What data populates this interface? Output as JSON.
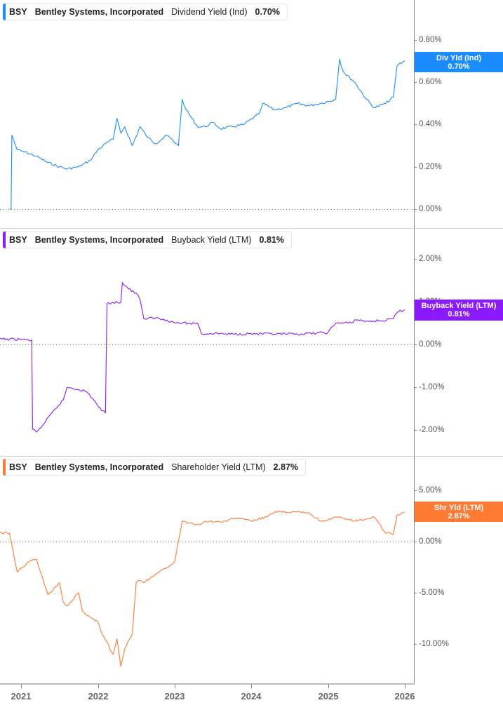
{
  "chart_data": [
    {
      "type": "line",
      "title": "BSY Bentley Systems, Incorporated Dividend Yield (Ind) 0.70%",
      "ticker": "BSY",
      "company": "Bentley Systems, Incorporated",
      "metric": "Dividend Yield (Ind)",
      "current_value": "0.70%",
      "tag_label": "Div Yld (Ind)",
      "color": "#1a8cff",
      "ylim": [
        0.0,
        0.85
      ],
      "yticks": [
        "0.80%",
        "0.60%",
        "0.40%",
        "0.20%",
        "0.00%"
      ],
      "x": [
        2020.85,
        2020.87,
        2020.88,
        2020.95,
        2021.05,
        2021.2,
        2021.35,
        2021.5,
        2021.6,
        2021.75,
        2021.9,
        2022.0,
        2022.1,
        2022.2,
        2022.25,
        2022.3,
        2022.35,
        2022.45,
        2022.55,
        2022.65,
        2022.75,
        2022.9,
        2023.05,
        2023.1,
        2023.15,
        2023.3,
        2023.4,
        2023.5,
        2023.6,
        2023.75,
        2023.9,
        2024.1,
        2024.15,
        2024.3,
        2024.45,
        2024.6,
        2024.75,
        2024.9,
        2025.1,
        2025.15,
        2025.2,
        2025.35,
        2025.5,
        2025.6,
        2025.75,
        2025.85,
        2025.9,
        2026.0
      ],
      "values": [
        0.0,
        0.0,
        0.35,
        0.28,
        0.27,
        0.25,
        0.22,
        0.2,
        0.19,
        0.2,
        0.23,
        0.28,
        0.31,
        0.33,
        0.43,
        0.36,
        0.39,
        0.3,
        0.39,
        0.34,
        0.31,
        0.35,
        0.3,
        0.52,
        0.47,
        0.39,
        0.39,
        0.41,
        0.38,
        0.39,
        0.4,
        0.45,
        0.5,
        0.47,
        0.48,
        0.5,
        0.49,
        0.5,
        0.52,
        0.71,
        0.65,
        0.6,
        0.52,
        0.48,
        0.5,
        0.53,
        0.68,
        0.7
      ]
    },
    {
      "type": "line",
      "title": "BSY Bentley Systems, Incorporated Buyback Yield (LTM) 0.81%",
      "ticker": "BSY",
      "company": "Bentley Systems, Incorporated",
      "metric": "Buyback Yield (LTM)",
      "current_value": "0.81%",
      "tag_label": "Buyback Yield (LTM)",
      "color": "#8c1aff",
      "ylim": [
        -2.2,
        2.2
      ],
      "yticks": [
        "2.00%",
        "1.00%",
        "0.00%",
        "-1.00%",
        "-2.00%"
      ],
      "x": [
        2020.7,
        2020.85,
        2021.0,
        2021.1,
        2021.14,
        2021.15,
        2021.2,
        2021.3,
        2021.45,
        2021.55,
        2021.6,
        2021.75,
        2021.85,
        2021.95,
        2022.05,
        2022.1,
        2022.12,
        2022.2,
        2022.3,
        2022.32,
        2022.4,
        2022.5,
        2022.55,
        2022.6,
        2022.75,
        2022.9,
        2023.0,
        2023.1,
        2023.2,
        2023.3,
        2023.35,
        2023.6,
        2023.65,
        2024.0,
        2024.3,
        2024.6,
        2025.0,
        2025.1,
        2025.3,
        2025.35,
        2025.5,
        2025.6,
        2025.7,
        2025.85,
        2025.9,
        2026.0
      ],
      "values": [
        0.13,
        0.12,
        0.12,
        0.1,
        0.1,
        -1.98,
        -2.05,
        -1.85,
        -1.5,
        -1.3,
        -1.0,
        -1.05,
        -1.1,
        -1.3,
        -1.55,
        -1.6,
        0.96,
        0.98,
        0.98,
        1.45,
        1.3,
        1.2,
        1.05,
        0.6,
        0.62,
        0.57,
        0.51,
        0.5,
        0.49,
        0.5,
        0.25,
        0.26,
        0.24,
        0.25,
        0.24,
        0.24,
        0.28,
        0.5,
        0.5,
        0.58,
        0.54,
        0.55,
        0.55,
        0.6,
        0.75,
        0.81
      ]
    },
    {
      "type": "line",
      "title": "BSY Bentley Systems, Incorporated Shareholder Yield (LTM) 2.87%",
      "ticker": "BSY",
      "company": "Bentley Systems, Incorporated",
      "metric": "Shareholder Yield (LTM)",
      "current_value": "2.87%",
      "tag_label": "Shr Yld (LTM)",
      "color": "#ff7a33",
      "ylim": [
        -12.5,
        6.0
      ],
      "yticks": [
        "5.00%",
        "0.00%",
        "-5.00%",
        "-10.00%"
      ],
      "x": [
        2020.7,
        2020.85,
        2020.95,
        2021.0,
        2021.1,
        2021.2,
        2021.35,
        2021.5,
        2021.55,
        2021.6,
        2021.75,
        2021.8,
        2021.9,
        2022.0,
        2022.05,
        2022.1,
        2022.2,
        2022.25,
        2022.3,
        2022.35,
        2022.45,
        2022.5,
        2022.55,
        2022.6,
        2022.8,
        2022.9,
        2023.0,
        2023.1,
        2023.2,
        2023.35,
        2023.4,
        2023.6,
        2023.8,
        2024.0,
        2024.2,
        2024.35,
        2024.5,
        2024.6,
        2024.75,
        2024.9,
        2025.05,
        2025.1,
        2025.35,
        2025.5,
        2025.6,
        2025.75,
        2025.8,
        2025.85,
        2025.9,
        2026.0
      ],
      "values": [
        0.9,
        0.8,
        -3.0,
        -2.6,
        -2.0,
        -1.7,
        -5.2,
        -4.0,
        -5.9,
        -6.3,
        -5.0,
        -6.8,
        -7.4,
        -7.8,
        -9.0,
        -9.6,
        -11.0,
        -9.5,
        -12.2,
        -10.5,
        -9.0,
        -4.0,
        -3.8,
        -4.0,
        -3.0,
        -2.5,
        -2.0,
        2.0,
        1.8,
        1.7,
        2.0,
        1.9,
        2.3,
        2.0,
        2.4,
        3.0,
        2.8,
        2.9,
        2.8,
        2.0,
        2.2,
        2.4,
        2.0,
        2.2,
        2.4,
        0.8,
        0.9,
        0.7,
        2.6,
        2.87
      ]
    }
  ],
  "x_axis": {
    "ticks": [
      "2021",
      "2022",
      "2023",
      "2024",
      "2025",
      "2026"
    ]
  },
  "panels": [
    {
      "legend": {
        "ticker": "BSY",
        "company": "Bentley Systems, Incorporated",
        "metric": "Dividend Yield (Ind)",
        "value": "0.70%"
      },
      "tag": {
        "label": "Div Yld (Ind)",
        "value": "0.70%"
      },
      "yticks": [
        "0.80%",
        "0.60%",
        "0.40%",
        "0.20%",
        "0.00%"
      ]
    },
    {
      "legend": {
        "ticker": "BSY",
        "company": "Bentley Systems, Incorporated",
        "metric": "Buyback Yield (LTM)",
        "value": "0.81%"
      },
      "tag": {
        "label": "Buyback Yield (LTM)",
        "value": "0.81%"
      },
      "yticks": [
        "2.00%",
        "1.00%",
        "0.00%",
        "-1.00%",
        "-2.00%"
      ]
    },
    {
      "legend": {
        "ticker": "BSY",
        "company": "Bentley Systems, Incorporated",
        "metric": "Shareholder Yield (LTM)",
        "value": "2.87%"
      },
      "tag": {
        "label": "Shr Yld (LTM)",
        "value": "2.87%"
      },
      "yticks": [
        "5.00%",
        "0.00%",
        "-5.00%",
        "-10.00%"
      ]
    }
  ],
  "colors": {
    "dividend": "#1a8cff",
    "buyback": "#8c1aff",
    "shareholder": "#ff7a33"
  }
}
